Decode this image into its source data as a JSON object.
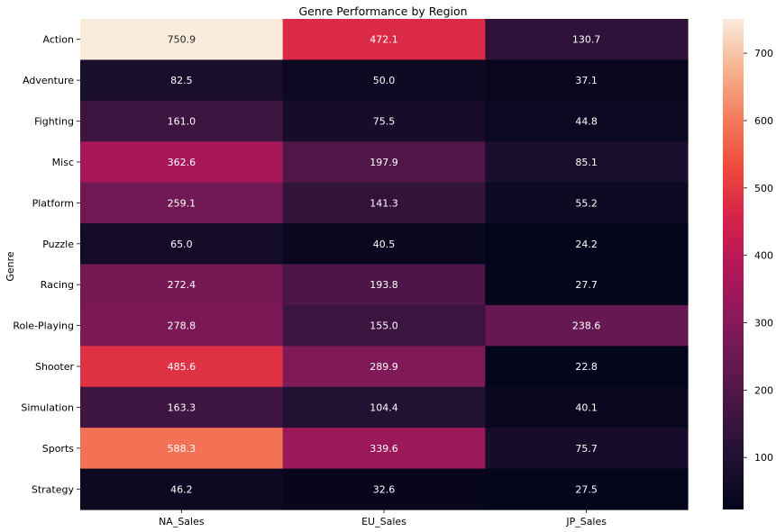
{
  "chart_data": {
    "type": "heatmap",
    "title": "Genre Performance by Region",
    "xlabel": "",
    "ylabel": "Genre",
    "columns": [
      "NA_Sales",
      "EU_Sales",
      "JP_Sales"
    ],
    "rows": [
      "Action",
      "Adventure",
      "Fighting",
      "Misc",
      "Platform",
      "Puzzle",
      "Racing",
      "Role-Playing",
      "Shooter",
      "Simulation",
      "Sports",
      "Strategy"
    ],
    "values": [
      [
        750.9,
        472.1,
        130.7
      ],
      [
        82.5,
        50.0,
        37.1
      ],
      [
        161.0,
        75.5,
        44.8
      ],
      [
        362.6,
        197.9,
        85.1
      ],
      [
        259.1,
        141.3,
        55.2
      ],
      [
        65.0,
        40.5,
        24.2
      ],
      [
        272.4,
        193.8,
        27.7
      ],
      [
        278.8,
        155.0,
        238.6
      ],
      [
        485.6,
        289.9,
        22.8
      ],
      [
        163.3,
        104.4,
        40.1
      ],
      [
        588.3,
        339.6,
        75.7
      ],
      [
        46.2,
        32.6,
        27.5
      ]
    ],
    "annotations": [
      [
        "750.9",
        "472.1",
        "130.7"
      ],
      [
        "82.5",
        "50.0",
        "37.1"
      ],
      [
        "161.0",
        "75.5",
        "44.8"
      ],
      [
        "362.6",
        "197.9",
        "85.1"
      ],
      [
        "259.1",
        "141.3",
        "55.2"
      ],
      [
        "65.0",
        "40.5",
        "24.2"
      ],
      [
        "272.4",
        "193.8",
        "27.7"
      ],
      [
        "278.8",
        "155.0",
        "238.6"
      ],
      [
        "485.6",
        "289.9",
        "22.8"
      ],
      [
        "163.3",
        "104.4",
        "40.1"
      ],
      [
        "588.3",
        "339.6",
        "75.7"
      ],
      [
        "46.2",
        "32.6",
        "27.5"
      ]
    ],
    "colormap": "rocket",
    "vmin": 22.8,
    "vmax": 750.9,
    "colorbar_ticks": [
      100,
      200,
      300,
      400,
      500,
      600,
      700
    ],
    "grid": false
  }
}
